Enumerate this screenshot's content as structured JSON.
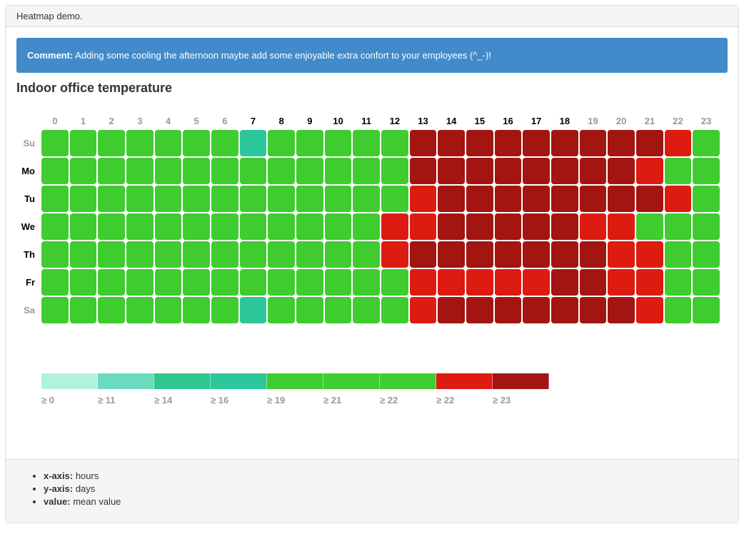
{
  "panel": {
    "heading": "Heatmap demo."
  },
  "alert": {
    "label": "Comment:",
    "text": " Adding some cooling the afternoon maybe add some enjoyable extra confort to your employees (^_-)!"
  },
  "chart_data": {
    "type": "heatmap",
    "title": "Indoor office temperature",
    "xlabel": "hours",
    "ylabel": "days",
    "value_label": "mean value",
    "x_categories": [
      "0",
      "1",
      "2",
      "3",
      "4",
      "5",
      "6",
      "7",
      "8",
      "9",
      "10",
      "11",
      "12",
      "13",
      "14",
      "15",
      "16",
      "17",
      "18",
      "19",
      "20",
      "21",
      "22",
      "23"
    ],
    "active_hours": [
      "7",
      "8",
      "9",
      "10",
      "11",
      "12",
      "13",
      "14",
      "15",
      "16",
      "17",
      "18"
    ],
    "y_categories": [
      "Su",
      "Mo",
      "Tu",
      "We",
      "Th",
      "Fr",
      "Sa"
    ],
    "active_days": [
      "Mo",
      "Tu",
      "We",
      "Th",
      "Fr"
    ],
    "classes": {
      "g": "#3ecc2f",
      "t": "#2cc79a",
      "r": "#dd1b10",
      "d": "#a21510"
    },
    "class_meaning": {
      "g": "green ≥ 19 band",
      "t": "teal ≥ 16 band",
      "r": "red ≥ 22 band",
      "d": "dark-red ≥ 23 band"
    },
    "cells": [
      "gggggggtgggggdddddddddrg",
      "gggggggggggggddddddddrgg",
      "gggggggggggggrddddddddrg",
      "ggggggggggggrrdddddrrggg",
      "ggggggggggggrdddddddrrgg",
      "gggggggggggggrrrrrddrrgg",
      "gggggggtgggggrdddddddrgg"
    ],
    "legend": [
      {
        "label": "≥ 0",
        "color": "#b2f2dd"
      },
      {
        "label": "≥ 11",
        "color": "#6adcbd"
      },
      {
        "label": "≥ 14",
        "color": "#2fc78d"
      },
      {
        "label": "≥ 16",
        "color": "#2cc79a"
      },
      {
        "label": "≥ 19",
        "color": "#3ecc2f"
      },
      {
        "label": "≥ 21",
        "color": "#3ecc2f"
      },
      {
        "label": "≥ 22",
        "color": "#3ecc2f"
      },
      {
        "label": "≥ 22",
        "color": "#dd1b10"
      },
      {
        "label": "≥ 23",
        "color": "#a21510"
      }
    ]
  },
  "footer": {
    "items": [
      {
        "label": "x-axis:",
        "value": "hours"
      },
      {
        "label": "y-axis:",
        "value": "days"
      },
      {
        "label": "value:",
        "value": "mean value"
      }
    ]
  }
}
